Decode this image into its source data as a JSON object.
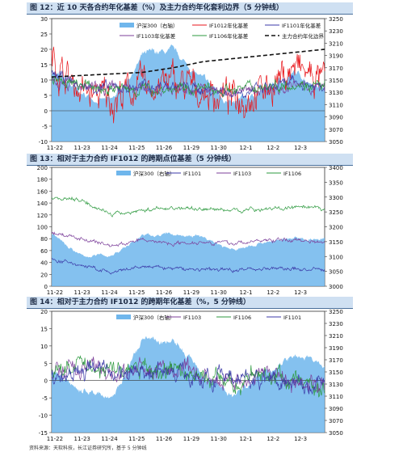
{
  "charts": [
    {
      "title": "图 12：近 10 天各合约年化基差（%）及主力合约年化套利边界（5 分钟线）",
      "legend": [
        "沪深300（右轴）",
        "IF1012年化基差",
        "IF1101年化基差",
        "IF1103年化基差",
        "IF1106年化基差",
        "主力合约年化边界"
      ],
      "left_ticks": [
        "30",
        "25",
        "20",
        "15",
        "10",
        "5",
        "0",
        "-5",
        "-10"
      ],
      "right_ticks": [
        "3250",
        "3230",
        "3210",
        "3190",
        "3170",
        "3150",
        "3130",
        "3110",
        "3090",
        "3070",
        "3050"
      ],
      "x_ticks": [
        "11-22",
        "11-23",
        "11-24",
        "11-25",
        "11-26",
        "11-29",
        "11-30",
        "12-1",
        "12-2",
        "12-3"
      ]
    },
    {
      "title": "图 13：相对于主力合约 IF1012 的跨期点位基差（5 分钟线）",
      "legend": [
        "沪深300（右轴）",
        "IF1101",
        "IF1103",
        "IF1106"
      ],
      "left_ticks": [
        "200",
        "180",
        "160",
        "140",
        "120",
        "100",
        "80",
        "60",
        "40",
        "20",
        "0"
      ],
      "right_ticks": [
        "3400",
        "3350",
        "3300",
        "3250",
        "3200",
        "3150",
        "3100",
        "3050",
        "3000"
      ],
      "x_ticks": [
        "11-22",
        "11-23",
        "11-24",
        "11-25",
        "11-26",
        "11-29",
        "11-30",
        "12-1",
        "12-2",
        "12-3"
      ]
    },
    {
      "title": "图 14：相对于主力合约 IF1012 的跨期年化基差（%，5 分钟线）",
      "legend": [
        "沪深300（右轴）",
        "IF1103",
        "IF1106",
        "IF1101"
      ],
      "left_ticks": [
        "20",
        "15",
        "10",
        "5",
        "0",
        "-5",
        "-10",
        "-15"
      ],
      "right_ticks": [
        "3250",
        "3230",
        "3210",
        "3190",
        "3170",
        "3150",
        "3130",
        "3110",
        "3090",
        "3070",
        "3050"
      ],
      "x_ticks": [
        "11-22",
        "11-23",
        "11-24",
        "11-25",
        "11-26",
        "11-29",
        "11-30",
        "12-1",
        "12-2",
        "12-3"
      ]
    }
  ],
  "source": "资料来源：天软科技，长江证券研究所，基于 5 分钟线",
  "colors": {
    "area": "#6fb6ec",
    "if1012": "#e8161b",
    "if1101": "#3b3aa8",
    "if1103": "#7c3f9a",
    "if1106": "#2d9a3f",
    "boundary": "#111111"
  },
  "chart_data": [
    {
      "type": "line",
      "title": "图 12：近 10 天各合约年化基差（%）及主力合约年化套利边界（5 分钟线）",
      "x": [
        "11-22",
        "11-23",
        "11-24",
        "11-25",
        "11-26",
        "11-29",
        "11-30",
        "12-1",
        "12-2",
        "12-3"
      ],
      "ylim": [
        -10,
        30
      ],
      "y2lim": [
        3050,
        3250
      ],
      "series": [
        {
          "name": "沪深300（右轴）",
          "axis": "right",
          "values": [
            3165,
            3125,
            3115,
            3190,
            3195,
            3150,
            3108,
            3135,
            3160,
            3140
          ]
        },
        {
          "name": "IF1012年化基差",
          "values": [
            17,
            6,
            4,
            8,
            9,
            6,
            4,
            7,
            14,
            9
          ]
        },
        {
          "name": "IF1101年化基差",
          "values": [
            12,
            8,
            7,
            8,
            8,
            7,
            6,
            7,
            9,
            8
          ]
        },
        {
          "name": "IF1103年化基差",
          "values": [
            11,
            7,
            7,
            7,
            7,
            7,
            6,
            7,
            8,
            7
          ]
        },
        {
          "name": "IF1106年化基差",
          "values": [
            10,
            8,
            7,
            7,
            7,
            7,
            7,
            8,
            9,
            8
          ]
        },
        {
          "name": "主力合约年化边界",
          "values": [
            11,
            11.5,
            12,
            12.5,
            14,
            16,
            17,
            18,
            19,
            20
          ]
        }
      ]
    },
    {
      "type": "line",
      "title": "图 13：相对于主力合约 IF1012 的跨期点位基差（5 分钟线）",
      "x": [
        "11-22",
        "11-23",
        "11-24",
        "11-25",
        "11-26",
        "11-29",
        "11-30",
        "12-1",
        "12-2",
        "12-3"
      ],
      "ylim": [
        0,
        200
      ],
      "y2lim": [
        3000,
        3400
      ],
      "series": [
        {
          "name": "沪深300（右轴）",
          "axis": "right",
          "values": [
            3175,
            3100,
            3105,
            3170,
            3175,
            3165,
            3120,
            3150,
            3160,
            3160
          ]
        },
        {
          "name": "IF1101",
          "values": [
            45,
            35,
            22,
            33,
            30,
            28,
            28,
            30,
            29,
            27
          ]
        },
        {
          "name": "IF1103",
          "values": [
            90,
            80,
            68,
            78,
            72,
            75,
            72,
            77,
            78,
            75
          ]
        },
        {
          "name": "IF1106",
          "values": [
            150,
            145,
            120,
            128,
            132,
            130,
            128,
            130,
            132,
            130
          ]
        }
      ]
    },
    {
      "type": "line",
      "title": "图 14：相对于主力合约 IF1012 的跨期年化基差（%，5 分钟线）",
      "x": [
        "11-22",
        "11-23",
        "11-24",
        "11-25",
        "11-26",
        "11-29",
        "11-30",
        "12-1",
        "12-2",
        "12-3"
      ],
      "ylim": [
        -15,
        20
      ],
      "y2lim": [
        3050,
        3250
      ],
      "series": [
        {
          "name": "沪深300（右轴）",
          "axis": "right",
          "values": [
            3150,
            3120,
            3110,
            3200,
            3200,
            3150,
            3110,
            3150,
            3180,
            3160
          ]
        },
        {
          "name": "IF1103",
          "values": [
            2,
            4,
            2,
            3,
            3,
            1,
            0,
            2,
            0,
            -2
          ]
        },
        {
          "name": "IF1106",
          "values": [
            3,
            5,
            3,
            3,
            3,
            1,
            -1,
            2,
            0,
            -3
          ]
        },
        {
          "name": "IF1101",
          "values": [
            1,
            4,
            2,
            3,
            3,
            1,
            0,
            1,
            0,
            -1
          ]
        }
      ]
    }
  ]
}
